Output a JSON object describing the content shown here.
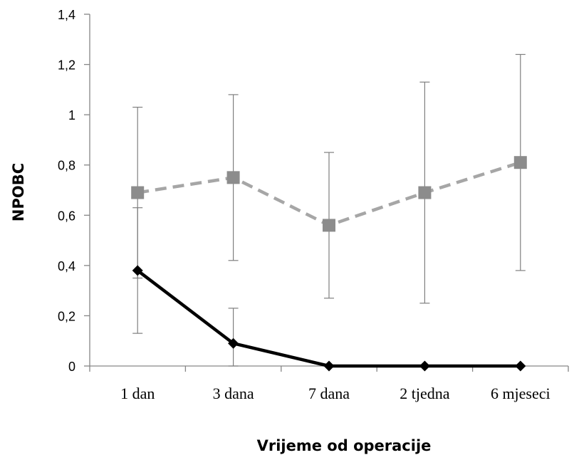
{
  "chart_data": {
    "type": "line",
    "title": "",
    "xlabel": "Vrijeme od operacije",
    "ylabel": "NPOBC",
    "categories": [
      "1 dan",
      "3 dana",
      "7 dana",
      "2 tjedna",
      "6 mjeseci"
    ],
    "ylim": [
      0,
      1.4
    ],
    "yticks": [
      "0",
      "0,2",
      "0,4",
      "0,6",
      "0,8",
      "1",
      "1,2",
      "1,4"
    ],
    "grid": false,
    "legend": "none",
    "series": [
      {
        "values": [
          0.69,
          0.75,
          0.56,
          0.69,
          0.81
        ],
        "error_low": [
          0.35,
          0.42,
          0.27,
          0.25,
          0.38
        ],
        "error_high": [
          1.03,
          1.08,
          0.85,
          1.13,
          1.24
        ],
        "color": "#a6a6a6",
        "line_style": "dashed",
        "marker": "square",
        "marker_color": "#8c8c8c"
      },
      {
        "values": [
          0.38,
          0.09,
          0.0,
          0.0,
          0.0
        ],
        "error_low": [
          0.13,
          0.0,
          null,
          null,
          null
        ],
        "error_high": [
          0.63,
          0.23,
          null,
          null,
          null
        ],
        "color": "#000000",
        "line_style": "solid",
        "marker": "diamond",
        "marker_color": "#000000"
      }
    ]
  }
}
